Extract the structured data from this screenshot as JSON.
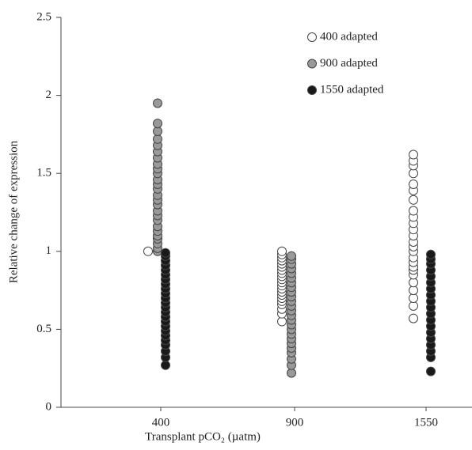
{
  "chart_data": {
    "type": "strip",
    "x_label": "Transplant pCO₂ (µatm)",
    "y_label": "Relative change of expression",
    "categories": [
      "400",
      "900",
      "1550"
    ],
    "ylim": [
      0,
      2.5
    ],
    "yticks": [
      0,
      0.5,
      1,
      1.5,
      2,
      2.5
    ],
    "legend_position": "upper right",
    "series": [
      {
        "name": "400 adapted",
        "color": "#ffffff",
        "values": [
          [
            1.0
          ],
          [
            0.55,
            0.6,
            0.63,
            0.66,
            0.68,
            0.7,
            0.72,
            0.74,
            0.76,
            0.78,
            0.8,
            0.82,
            0.84,
            0.86,
            0.88,
            0.9,
            0.92,
            0.94,
            0.96,
            0.98,
            1.0
          ],
          [
            0.57,
            0.65,
            0.7,
            0.75,
            0.8,
            0.85,
            0.88,
            0.9,
            0.93,
            0.96,
            1.0,
            1.03,
            1.06,
            1.1,
            1.14,
            1.18,
            1.22,
            1.26,
            1.33,
            1.39,
            1.43,
            1.5,
            1.55,
            1.58,
            1.62
          ]
        ]
      },
      {
        "name": "900 adapted",
        "color": "#999999",
        "values": [
          [
            1.0,
            1.02,
            1.05,
            1.08,
            1.1,
            1.13,
            1.16,
            1.2,
            1.23,
            1.26,
            1.3,
            1.33,
            1.36,
            1.4,
            1.43,
            1.46,
            1.5,
            1.53,
            1.56,
            1.6,
            1.64,
            1.68,
            1.72,
            1.77,
            1.82,
            1.95
          ],
          [
            0.22,
            0.27,
            0.31,
            0.35,
            0.38,
            0.41,
            0.44,
            0.47,
            0.5,
            0.53,
            0.56,
            0.59,
            0.62,
            0.65,
            0.68,
            0.71,
            0.74,
            0.77,
            0.8,
            0.83,
            0.86,
            0.89,
            0.92,
            0.95,
            0.97
          ],
          []
        ]
      },
      {
        "name": "1550 adapted",
        "color": "#1a1a1a",
        "values": [
          [
            0.27,
            0.32,
            0.36,
            0.4,
            0.43,
            0.46,
            0.49,
            0.52,
            0.55,
            0.58,
            0.61,
            0.64,
            0.67,
            0.7,
            0.73,
            0.76,
            0.79,
            0.82,
            0.85,
            0.88,
            0.91,
            0.94,
            0.97,
            0.99
          ],
          [],
          [
            0.23,
            0.32,
            0.36,
            0.4,
            0.44,
            0.48,
            0.52,
            0.56,
            0.6,
            0.64,
            0.68,
            0.72,
            0.76,
            0.8,
            0.84,
            0.88,
            0.92,
            0.95,
            0.98
          ]
        ]
      }
    ]
  }
}
